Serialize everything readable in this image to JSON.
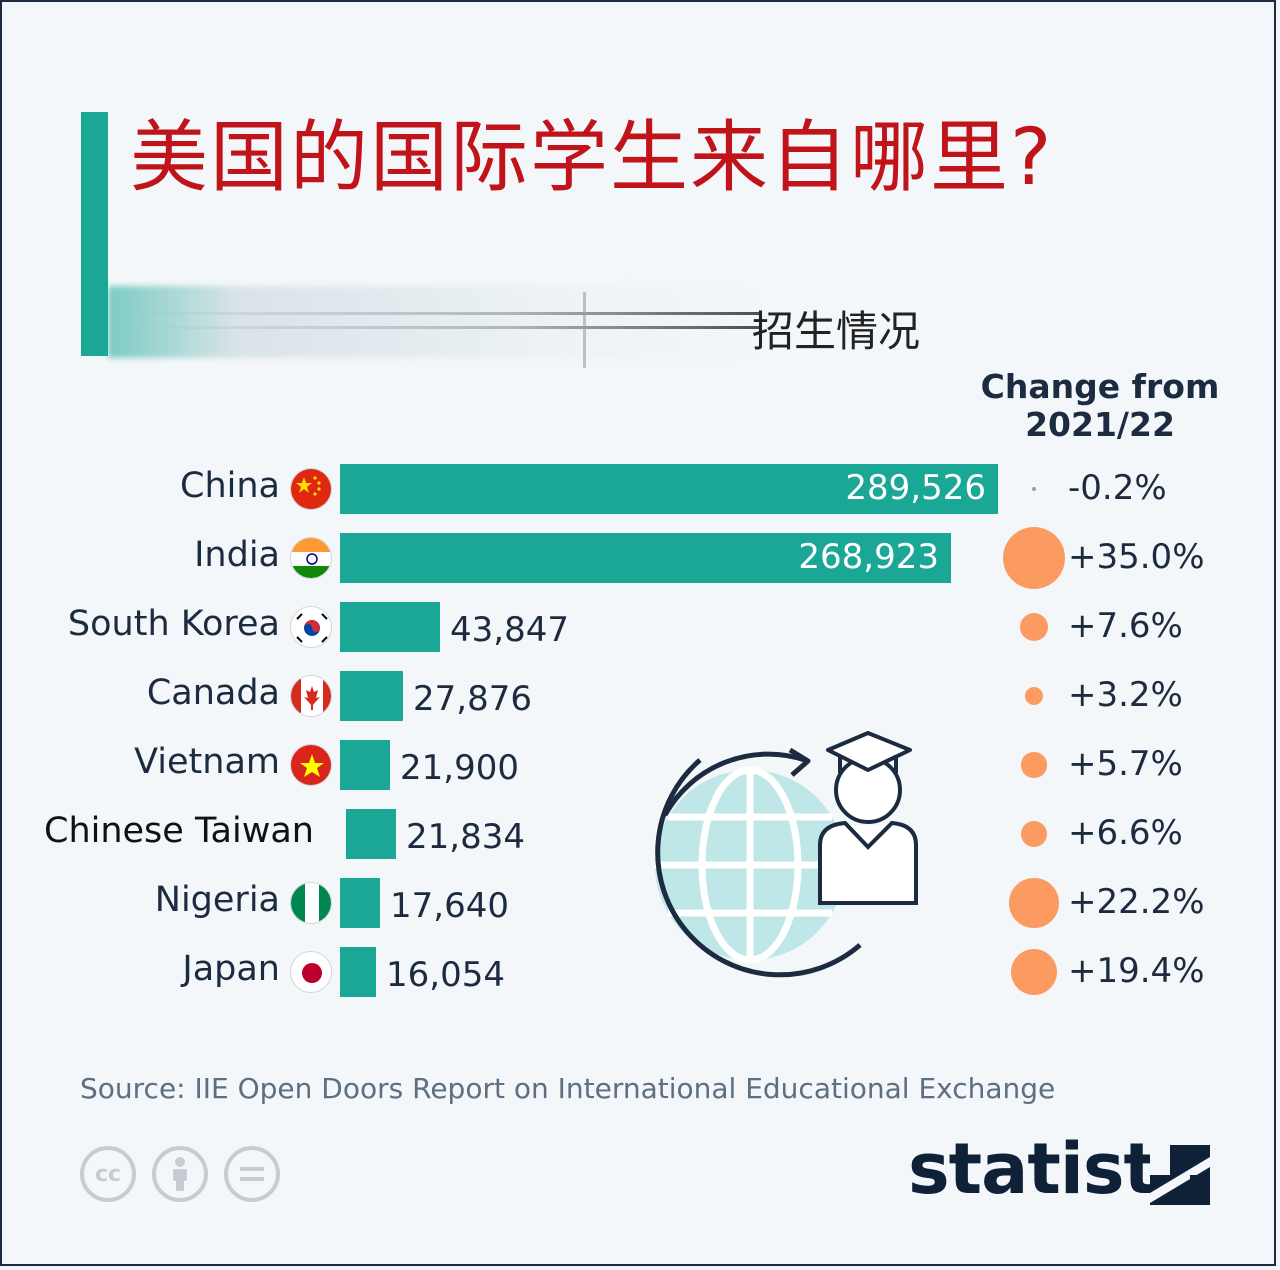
{
  "title": "美国的国际学生来自哪里?",
  "subtitle": "招生情况",
  "change_header": "Change from 2021/22",
  "source": "Source: IIE Open Doors Report on International Educational Exchange",
  "brand": "statista",
  "colors": {
    "bar": "#1ba796",
    "bubble": "#fb9b62",
    "title": "#c0141a",
    "text": "#1d2b40"
  },
  "icons": [
    "cc-icon",
    "attribution-icon",
    "no-derivatives-icon",
    "statista-logo-icon",
    "globe-student-icon"
  ],
  "chart_data": {
    "type": "bar",
    "orientation": "horizontal",
    "categories": [
      "China",
      "India",
      "South Korea",
      "Canada",
      "Vietnam",
      "Chinese Taiwan",
      "Nigeria",
      "Japan"
    ],
    "values": [
      289526,
      268923,
      43847,
      27876,
      21900,
      21834,
      17640,
      16054
    ],
    "value_labels": [
      "289,526",
      "268,923",
      "43,847",
      "27,876",
      "21,900",
      "21,834",
      "17,640",
      "16,054"
    ],
    "change": [
      -0.2,
      35.0,
      7.6,
      3.2,
      5.7,
      6.6,
      22.2,
      19.4
    ],
    "change_labels": [
      "-0.2%",
      "+35.0%",
      "+7.6%",
      "+3.2%",
      "+5.7%",
      "+6.6%",
      "+22.2%",
      "+19.4%"
    ],
    "flags": [
      "china",
      "india",
      "south-korea",
      "canada",
      "vietnam",
      "",
      "nigeria",
      "japan"
    ]
  }
}
